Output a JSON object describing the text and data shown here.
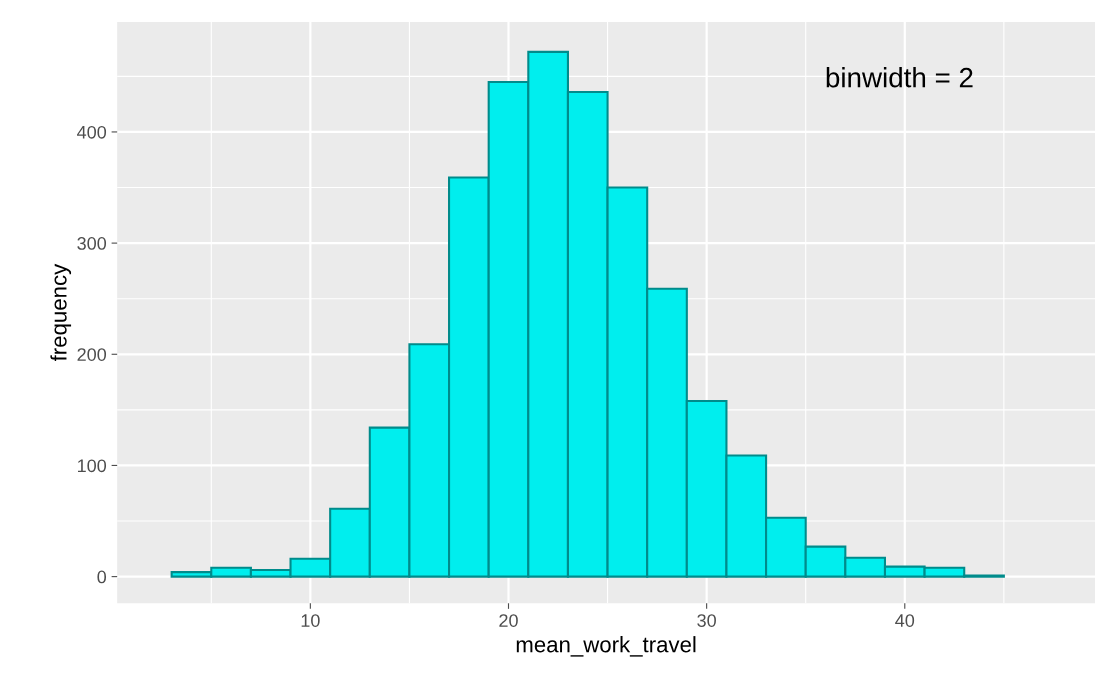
{
  "chart_data": {
    "type": "histogram",
    "xlabel": "mean_work_travel",
    "ylabel": "frequency",
    "annotations": [
      "binwidth = 2"
    ],
    "bins": [
      3,
      5,
      7,
      9,
      11,
      13,
      15,
      17,
      19,
      21,
      23,
      25,
      27,
      29,
      31,
      33,
      35,
      37,
      39,
      41,
      43,
      45
    ],
    "values": [
      4,
      8,
      6,
      16,
      61,
      134,
      209,
      359,
      445,
      472,
      436,
      350,
      259,
      158,
      109,
      53,
      27,
      17,
      9,
      8,
      1
    ],
    "color": "#00eeee",
    "xlim": [
      0.25,
      49.6
    ],
    "ylim": [
      -24,
      499
    ],
    "xticks": [
      10,
      20,
      30,
      40
    ],
    "yticks": [
      0,
      100,
      200,
      300,
      400
    ],
    "grid": true
  }
}
